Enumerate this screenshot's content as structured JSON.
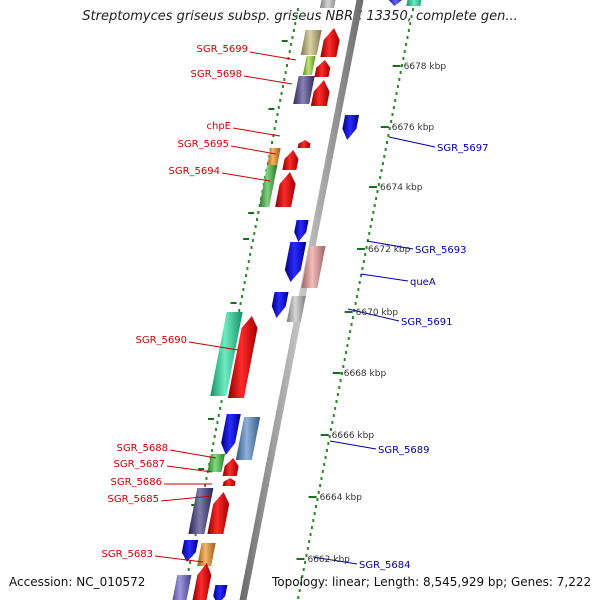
{
  "title": "Streptomyces griseus subsp. griseus NBRC 13350, complete gen...",
  "accession": "Accession: NC_010572",
  "summary": "Topology: linear; Length: 8,545,929 bp; Genes: 7,222",
  "colors": {
    "left_labels": "#cc0000",
    "right_labels": "#0000aa",
    "backbone": "#8a8a8a",
    "dots": "#2a8a2a"
  },
  "ruler": [
    {
      "pos_kbp": 6678,
      "label": "6678 kbp"
    },
    {
      "pos_kbp": 6676,
      "label": "6676 kbp"
    },
    {
      "pos_kbp": 6674,
      "label": "6674 kbp"
    },
    {
      "pos_kbp": 6672,
      "label": "6672 kbp"
    },
    {
      "pos_kbp": 6670,
      "label": "6670 kbp"
    },
    {
      "pos_kbp": 6668,
      "label": "6668 kbp"
    },
    {
      "pos_kbp": 6666,
      "label": "6666 kbp"
    },
    {
      "pos_kbp": 6664,
      "label": "6664 kbp"
    },
    {
      "pos_kbp": 6662,
      "label": "6662 kbp"
    }
  ],
  "left_genes": [
    {
      "label": "SGR_5699",
      "color": "#c8b878"
    },
    {
      "label": "SGR_5698",
      "color": "#9cd632"
    },
    {
      "label": "chpE",
      "color": "#4a3f8c"
    },
    {
      "label": "SGR_5695",
      "color": "#f08a10"
    },
    {
      "label": "SGR_5694",
      "color": "#3cb83c"
    },
    {
      "label": "SGR_5690",
      "color": "#20e0a0"
    },
    {
      "label": "SGR_5688",
      "color": "#3cc83c"
    },
    {
      "label": "SGR_5687",
      "color": "#ee1111"
    },
    {
      "label": "SGR_5686",
      "color": "#ee1111"
    },
    {
      "label": "SGR_5685",
      "color": "#3b3680"
    },
    {
      "label": "SGR_5683",
      "color": "#6a60cc"
    }
  ],
  "right_genes": [
    {
      "label": "SGR_5697",
      "color": "#1010e0"
    },
    {
      "label": "SGR_5693",
      "color": "#1010e0"
    },
    {
      "label": "queA",
      "color": "#f09898"
    },
    {
      "label": "SGR_5691",
      "color": "#c0c0c0"
    },
    {
      "label": "SGR_5689",
      "color": "#5088c8"
    },
    {
      "label": "SGR_5684",
      "color": "#f09020"
    }
  ]
}
